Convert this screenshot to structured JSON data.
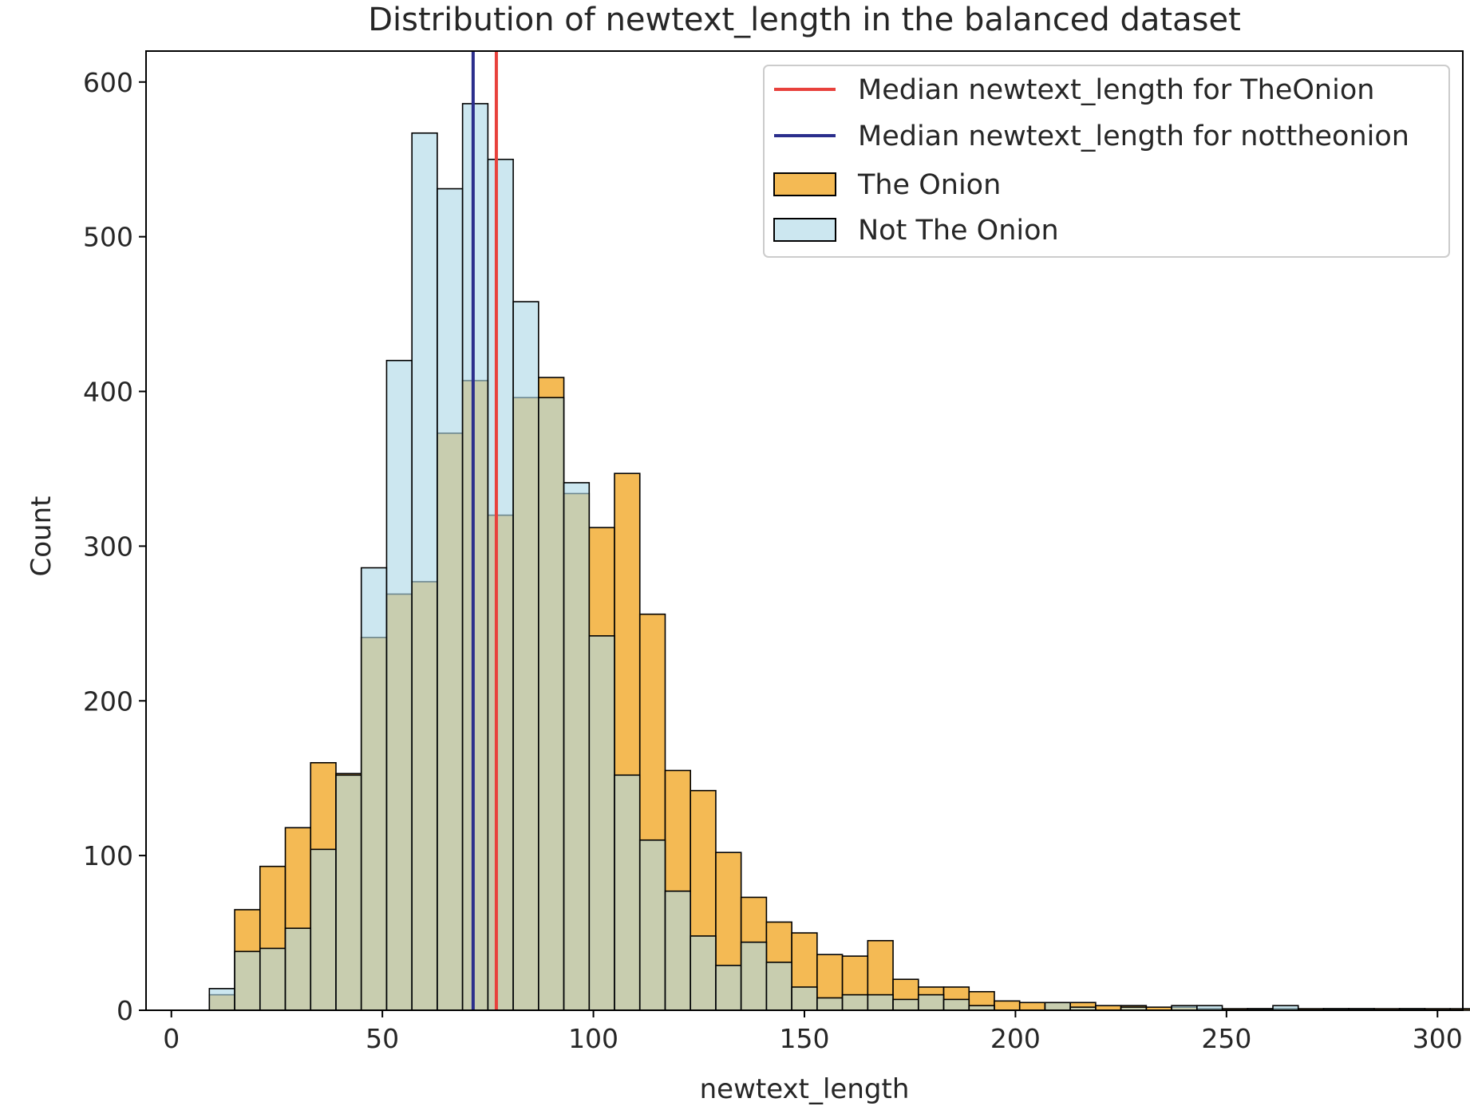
{
  "chart_data": {
    "type": "histogram",
    "title": "Distribution of newtext_length in the balanced dataset",
    "xlabel": "newtext_length",
    "ylabel": "Count",
    "xlim": [
      -6,
      306
    ],
    "ylim": [
      0,
      620
    ],
    "xticks": [
      "0",
      "50",
      "100",
      "150",
      "200",
      "250",
      "300"
    ],
    "yticks": [
      "0",
      "100",
      "200",
      "300",
      "400",
      "500",
      "600"
    ],
    "bin_start": 9,
    "bin_width": 6,
    "series": [
      {
        "name": "The Onion",
        "color": "#f3b13c",
        "values": [
          10,
          65,
          93,
          118,
          160,
          153,
          241,
          269,
          277,
          373,
          407,
          320,
          396,
          409,
          334,
          312,
          347,
          256,
          155,
          142,
          102,
          73,
          57,
          50,
          36,
          35,
          45,
          20,
          15,
          15,
          12,
          6,
          5,
          5,
          5,
          3,
          3,
          2,
          2,
          1,
          1,
          1,
          1,
          1,
          1,
          1,
          1,
          1,
          1,
          1
        ]
      },
      {
        "name": "Not The Onion",
        "color": "#add8e6",
        "values": [
          14,
          38,
          40,
          53,
          104,
          152,
          286,
          420,
          567,
          531,
          586,
          550,
          458,
          396,
          341,
          242,
          152,
          110,
          77,
          48,
          29,
          44,
          31,
          15,
          8,
          10,
          10,
          7,
          10,
          7,
          3,
          0,
          0,
          5,
          2,
          0,
          2,
          0,
          3,
          3,
          0,
          1,
          3,
          0,
          1,
          1,
          0,
          1,
          0,
          0
        ]
      }
    ],
    "medians": [
      {
        "label": "Median newtext_length for TheOnion",
        "x": 77,
        "color": "#e8413c"
      },
      {
        "label": "Median newtext_length for nottheonion",
        "x": 71.5,
        "color": "#2b2e8c"
      }
    ],
    "legend_position": "top-right"
  }
}
